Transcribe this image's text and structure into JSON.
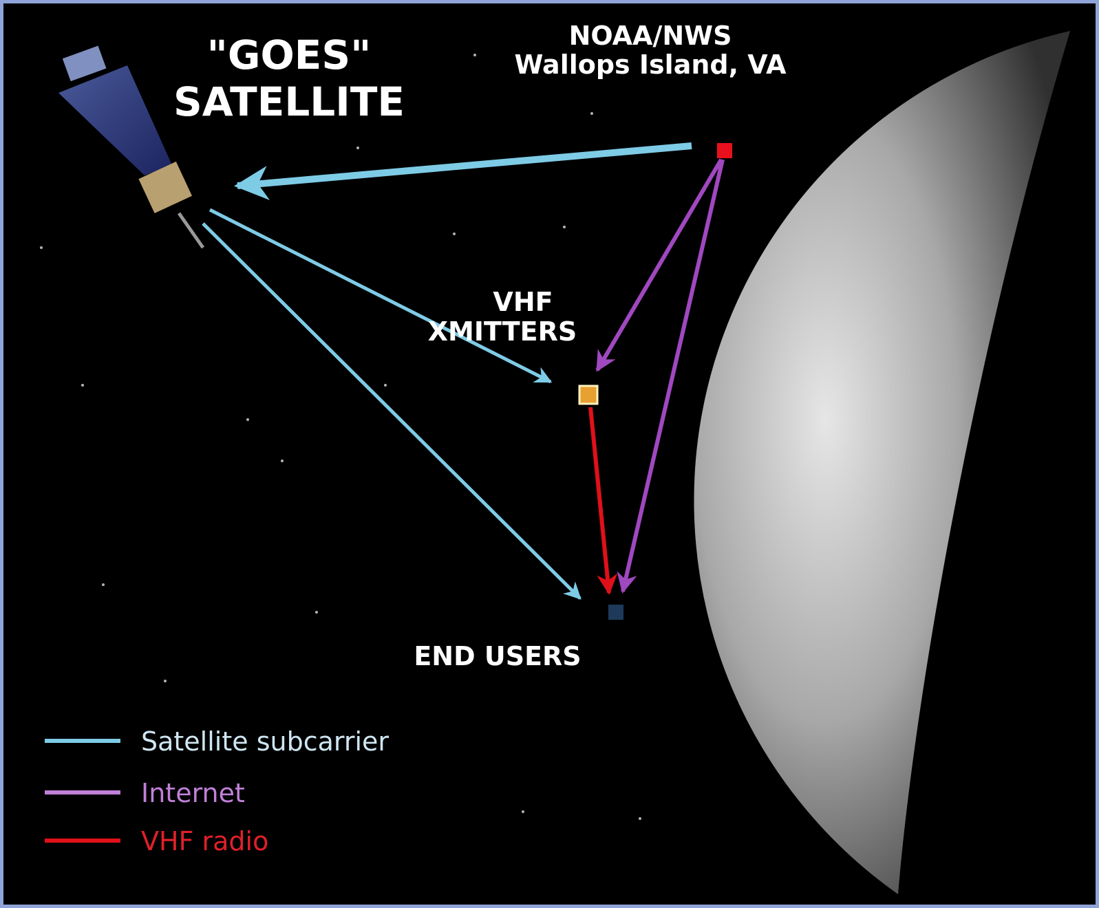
{
  "satellite": {
    "label": [
      "\"GOES\"",
      "SATELLITE"
    ]
  },
  "nodes": [
    {
      "label": [
        "NOAA/NWS",
        "Wallops Island, VA"
      ]
    },
    {
      "label": [
        "VHF",
        "XMITTERS"
      ]
    },
    {
      "label": [
        "END USERS"
      ]
    }
  ],
  "legend": [
    "Satellite subcarrier",
    "Internet",
    "VHF radio"
  ]
}
